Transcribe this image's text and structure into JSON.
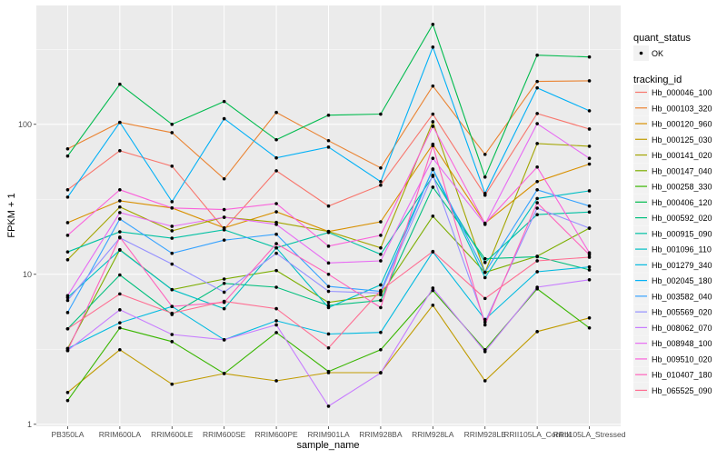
{
  "chart_data": {
    "type": "line",
    "xlabel": "sample_name",
    "ylabel": "FPKM + 1",
    "y_scale": "log10",
    "ylim": [
      0.97,
      620
    ],
    "y_ticks": [
      "1",
      "10",
      "100"
    ],
    "y_tick_values": [
      1,
      10,
      100
    ],
    "grid": true,
    "legend_position": "right",
    "categories": [
      "PB350LA",
      "RRIM600LA",
      "RRIM600LE",
      "RRIM600SE",
      "RRIM600PE",
      "RRIM901LA",
      "RRIM928BA",
      "RRIM928LA",
      "RRIM928LE",
      "RRII105LA_Control",
      "RRII105LA_Stressed"
    ],
    "point_legend": {
      "title": "quant_status",
      "items": [
        "OK"
      ]
    },
    "line_legend_title": "tracking_id",
    "series": [
      {
        "name": "Hb_000046_100",
        "color": "#F8766D",
        "values": [
          36.6,
          66.7,
          52.6,
          20.0,
          49.0,
          28.5,
          39.3,
          117,
          33.7,
          118,
          93
        ]
      },
      {
        "name": "Hb_000103_320",
        "color": "#EA8331",
        "values": [
          68.6,
          103,
          88,
          43.3,
          120,
          77.8,
          51.2,
          180,
          63,
          193,
          195
        ]
      },
      {
        "name": "Hb_000120_960",
        "color": "#D89000",
        "values": [
          22.1,
          30.9,
          27.7,
          20.4,
          26.1,
          19.3,
          22.4,
          73.6,
          21.9,
          41.5,
          54.3
        ]
      },
      {
        "name": "Hb_000125_030",
        "color": "#C09B00",
        "values": [
          1.63,
          3.14,
          1.85,
          2.18,
          1.95,
          2.21,
          2.21,
          6.22,
          1.95,
          4.15,
          5.12
        ]
      },
      {
        "name": "Hb_000141_020",
        "color": "#A3A500",
        "values": [
          12.5,
          28.1,
          19.5,
          24.0,
          22.2,
          19.3,
          15.0,
          104,
          10.3,
          74.5,
          71.4
        ]
      },
      {
        "name": "Hb_000147_040",
        "color": "#7CAE00",
        "values": [
          3.2,
          14.6,
          7.9,
          9.3,
          10.6,
          6.5,
          7.3,
          24.4,
          10.3,
          13.2,
          20.3
        ]
      },
      {
        "name": "Hb_000258_330",
        "color": "#39B600",
        "values": [
          1.44,
          4.39,
          3.56,
          2.18,
          4.09,
          2.25,
          3.14,
          7.8,
          3.14,
          8.0,
          4.39
        ]
      },
      {
        "name": "Hb_000406_120",
        "color": "#00BB4E",
        "values": [
          61.4,
          185,
          100,
          142,
          78.9,
          115,
          117,
          464,
          44.5,
          289,
          281
        ]
      },
      {
        "name": "Hb_000592_020",
        "color": "#00BF7D",
        "values": [
          4.33,
          9.9,
          5.4,
          8.7,
          8.2,
          6.2,
          6.7,
          38.1,
          12.7,
          13.1,
          10.7
        ]
      },
      {
        "name": "Hb_000915_090",
        "color": "#00C1A3",
        "values": [
          14.1,
          19.2,
          17.4,
          19.8,
          15.0,
          19.0,
          13.6,
          45,
          12.0,
          25.0,
          26.0
        ]
      },
      {
        "name": "Hb_001096_110",
        "color": "#00BFC4",
        "values": [
          7.0,
          14.5,
          7.9,
          5.9,
          15.0,
          6.0,
          8.5,
          50,
          9.5,
          32,
          36
        ]
      },
      {
        "name": "Hb_001279_340",
        "color": "#00BAE0",
        "values": [
          3.2,
          4.75,
          6.1,
          3.66,
          4.9,
          4.0,
          4.1,
          14.1,
          5.0,
          10.4,
          11.2
        ]
      },
      {
        "name": "Hb_002045_180",
        "color": "#00B0F6",
        "values": [
          32.7,
          103,
          30.5,
          109,
          59.7,
          70.5,
          41.5,
          327,
          34.6,
          175,
          123
        ]
      },
      {
        "name": "Hb_003582_040",
        "color": "#35A2FF",
        "values": [
          5.56,
          23.4,
          13.8,
          16.9,
          18.5,
          8.3,
          7.7,
          50.4,
          10.3,
          36.6,
          28.5
        ]
      },
      {
        "name": "Hb_005569_020",
        "color": "#9590FF",
        "values": [
          6.7,
          17.5,
          11.7,
          7.6,
          13.8,
          7.7,
          7.5,
          45.7,
          4.8,
          27.6,
          20.3
        ]
      },
      {
        "name": "Hb_008062_070",
        "color": "#C77CFF",
        "values": [
          3.1,
          5.8,
          3.97,
          3.66,
          4.6,
          1.32,
          2.2,
          8.1,
          3.05,
          8.2,
          9.2
        ]
      },
      {
        "name": "Hb_008948_100",
        "color": "#E76BF3",
        "values": [
          7.2,
          25.8,
          20.9,
          24.0,
          21.5,
          11.9,
          12.3,
          59.3,
          21.5,
          101,
          59.3
        ]
      },
      {
        "name": "Hb_009510_020",
        "color": "#FA62DB",
        "values": [
          18.2,
          36.6,
          27.7,
          27.0,
          29.6,
          15.4,
          18.2,
          97,
          21.8,
          51.9,
          13.9
        ]
      },
      {
        "name": "Hb_010407_180",
        "color": "#FF62BC",
        "values": [
          3.1,
          17.7,
          6.1,
          6.5,
          16.0,
          10.0,
          6.0,
          72,
          4.6,
          30,
          13.5
        ]
      },
      {
        "name": "Hb_065525_090",
        "color": "#FF6C91",
        "values": [
          4.33,
          7.4,
          5.5,
          6.6,
          5.9,
          3.23,
          7.8,
          14.2,
          6.9,
          12.3,
          13.0
        ]
      }
    ]
  }
}
